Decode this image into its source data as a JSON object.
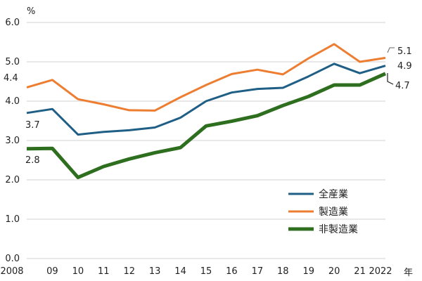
{
  "chart_data": {
    "type": "line",
    "title": "",
    "ylabel": "%",
    "xlabel": "年",
    "ylim": [
      0,
      6
    ],
    "yticks": [
      "0.0",
      "1.0",
      "2.0",
      "3.0",
      "4.0",
      "5.0",
      "6.0"
    ],
    "categories": [
      "2008",
      "09",
      "10",
      "11",
      "12",
      "13",
      "14",
      "15",
      "16",
      "17",
      "18",
      "19",
      "20",
      "21",
      "2022"
    ],
    "grid": true,
    "legend_position": "bottom-right",
    "series": [
      {
        "name": "全産業",
        "color": "#1f5f86",
        "values": [
          3.7,
          3.8,
          3.15,
          3.22,
          3.26,
          3.33,
          3.58,
          4.0,
          4.22,
          4.31,
          4.34,
          4.63,
          4.95,
          4.71,
          4.9
        ]
      },
      {
        "name": "製造業",
        "color": "#ed7d31",
        "values": [
          4.35,
          4.54,
          4.05,
          3.92,
          3.77,
          3.76,
          4.1,
          4.41,
          4.69,
          4.8,
          4.68,
          5.09,
          5.45,
          5.0,
          5.1
        ]
      },
      {
        "name": "非製造業",
        "color": "#2e6f1f",
        "values": [
          2.79,
          2.8,
          2.06,
          2.34,
          2.53,
          2.69,
          2.82,
          3.37,
          3.49,
          3.63,
          3.89,
          4.12,
          4.41,
          4.41,
          4.7
        ]
      }
    ],
    "annotations": [
      {
        "text": "4.4",
        "series": 1,
        "index": 0
      },
      {
        "text": "3.7",
        "series": 0,
        "index": 0
      },
      {
        "text": "2.8",
        "series": 2,
        "index": 0
      },
      {
        "text": "5.1",
        "series": 1,
        "index": 14
      },
      {
        "text": "4.9",
        "series": 0,
        "index": 14
      },
      {
        "text": "4.7",
        "series": 2,
        "index": 14
      }
    ]
  }
}
